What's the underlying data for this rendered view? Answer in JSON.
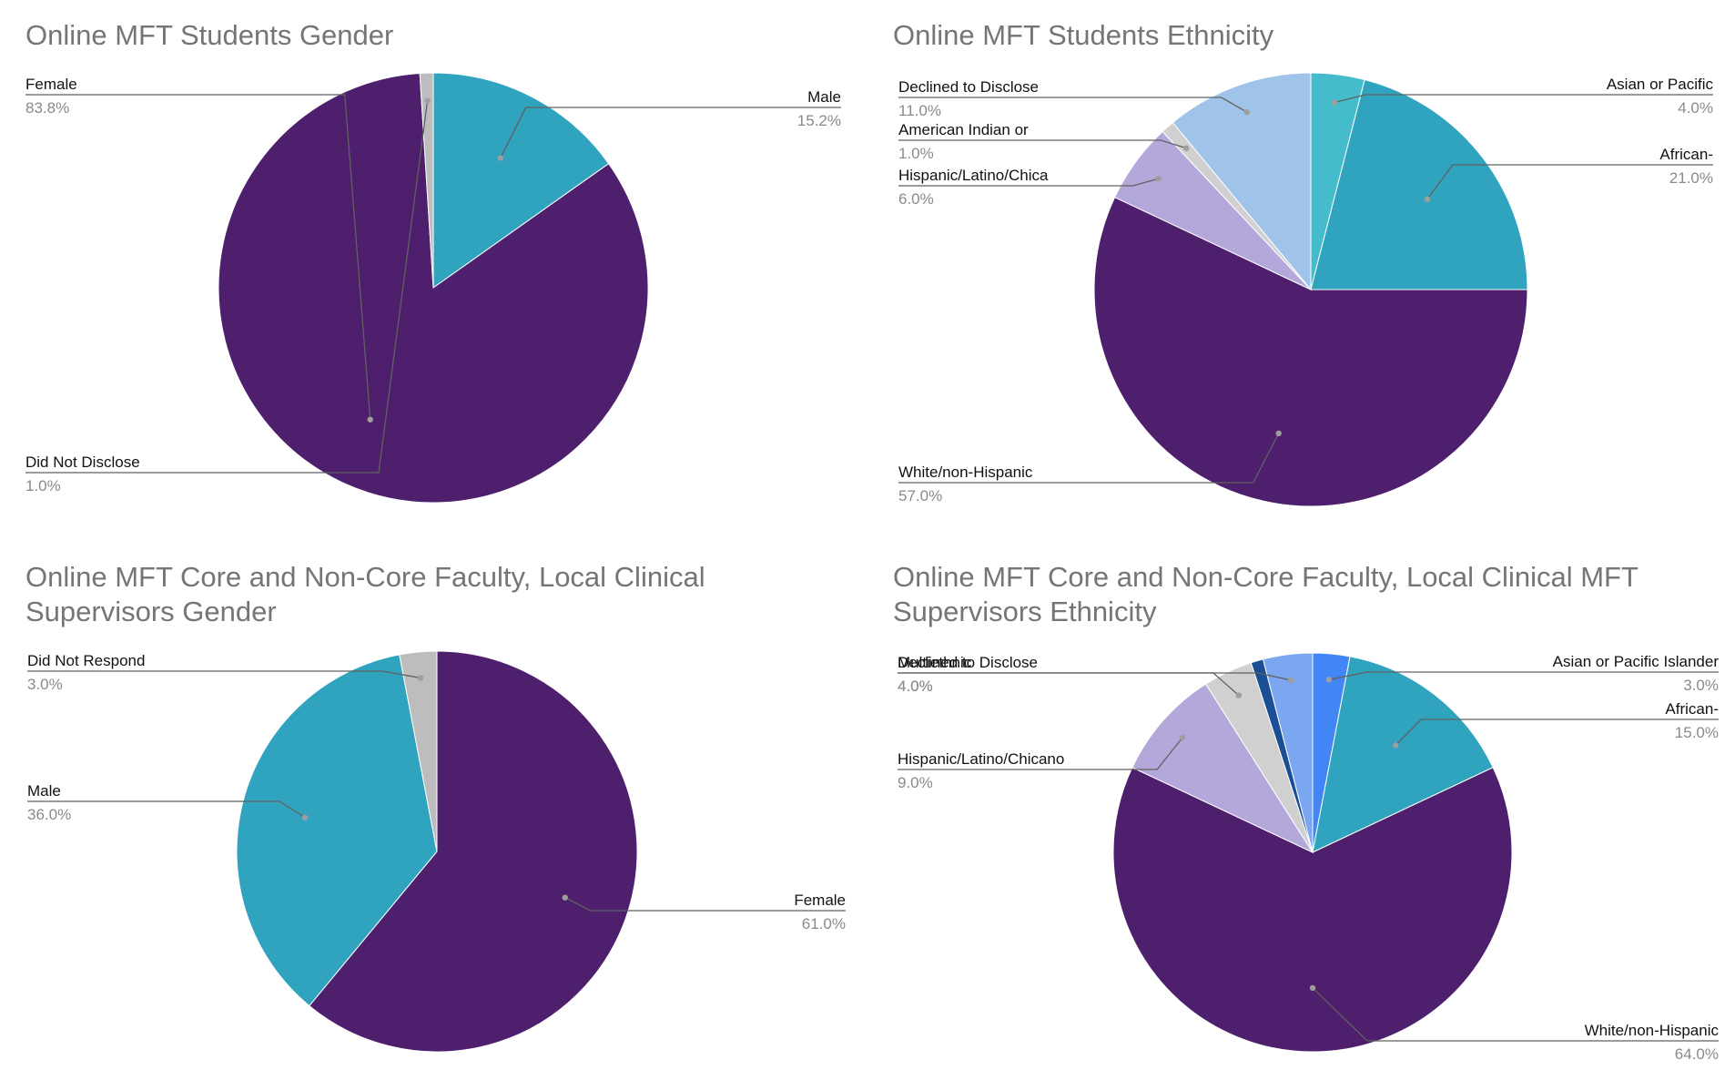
{
  "chart_data": [
    {
      "type": "pie",
      "title": "Online MFT Students Gender",
      "slices": [
        {
          "label": "Male",
          "value": 15.2,
          "pct_label": "15.2%",
          "color": "#30A3BE",
          "side": "right"
        },
        {
          "label": "Female",
          "value": 83.8,
          "pct_label": "83.8%",
          "color": "#4E1F6C",
          "side": "left"
        },
        {
          "label": "Did Not Disclose",
          "value": 1.0,
          "pct_label": "1.0%",
          "color": "#BDBDBD",
          "side": "left"
        }
      ]
    },
    {
      "type": "pie",
      "title": "Online MFT Students Ethnicity",
      "slices": [
        {
          "label": "Asian or Pacific",
          "value": 4.0,
          "pct_label": "4.0%",
          "color": "#45BCCB",
          "side": "right"
        },
        {
          "label": "African-",
          "value": 21.0,
          "pct_label": "21.0%",
          "color": "#30A3BE",
          "side": "right"
        },
        {
          "label": "White/non-Hispanic",
          "value": 57.0,
          "pct_label": "57.0%",
          "color": "#4E1F6C",
          "side": "left"
        },
        {
          "label": "Hispanic/Latino/Chica",
          "value": 6.0,
          "pct_label": "6.0%",
          "color": "#B4A8DA",
          "side": "left"
        },
        {
          "label": "American Indian or",
          "value": 1.0,
          "pct_label": "1.0%",
          "color": "#D0D0D0",
          "side": "left"
        },
        {
          "label": "Declined to Disclose",
          "value": 11.0,
          "pct_label": "11.0%",
          "color": "#A0C4E9",
          "side": "left"
        }
      ]
    },
    {
      "type": "pie",
      "title": "Online MFT Core and Non-Core Faculty, Local Clinical Supervisors Gender",
      "slices": [
        {
          "label": "Female",
          "value": 61.0,
          "pct_label": "61.0%",
          "color": "#4E1F6C",
          "side": "right"
        },
        {
          "label": "Male",
          "value": 36.0,
          "pct_label": "36.0%",
          "color": "#30A3BE",
          "side": "left"
        },
        {
          "label": "Did Not Respond",
          "value": 3.0,
          "pct_label": "3.0%",
          "color": "#BDBDBD",
          "side": "left"
        }
      ]
    },
    {
      "type": "pie",
      "title": "Online MFT Core and Non-Core Faculty, Local Clinical MFT Supervisors Ethnicity",
      "slices": [
        {
          "label": "Asian or Pacific Islander",
          "value": 3.0,
          "pct_label": "3.0%",
          "color": "#4285F4",
          "side": "right"
        },
        {
          "label": "African-",
          "value": 15.0,
          "pct_label": "15.0%",
          "color": "#30A3BE",
          "side": "right"
        },
        {
          "label": "White/non-Hispanic",
          "value": 64.0,
          "pct_label": "64.0%",
          "color": "#4E1F6C",
          "side": "right"
        },
        {
          "label": "Hispanic/Latino/Chicano",
          "value": 9.0,
          "pct_label": "9.0%",
          "color": "#B4A8DA",
          "side": "left"
        },
        {
          "label": "Multiethnic",
          "value": 4.0,
          "pct_label": "4.0%",
          "color": "#D0D0D0",
          "side": "left"
        },
        {
          "label": "",
          "value": 1.0,
          "pct_label": "",
          "color": "#1A4F95",
          "side": "none"
        },
        {
          "label": "Declined to Disclose",
          "value": 4.0,
          "pct_label": "4.0%",
          "color": "#7BA7F0",
          "side": "left"
        }
      ]
    }
  ]
}
